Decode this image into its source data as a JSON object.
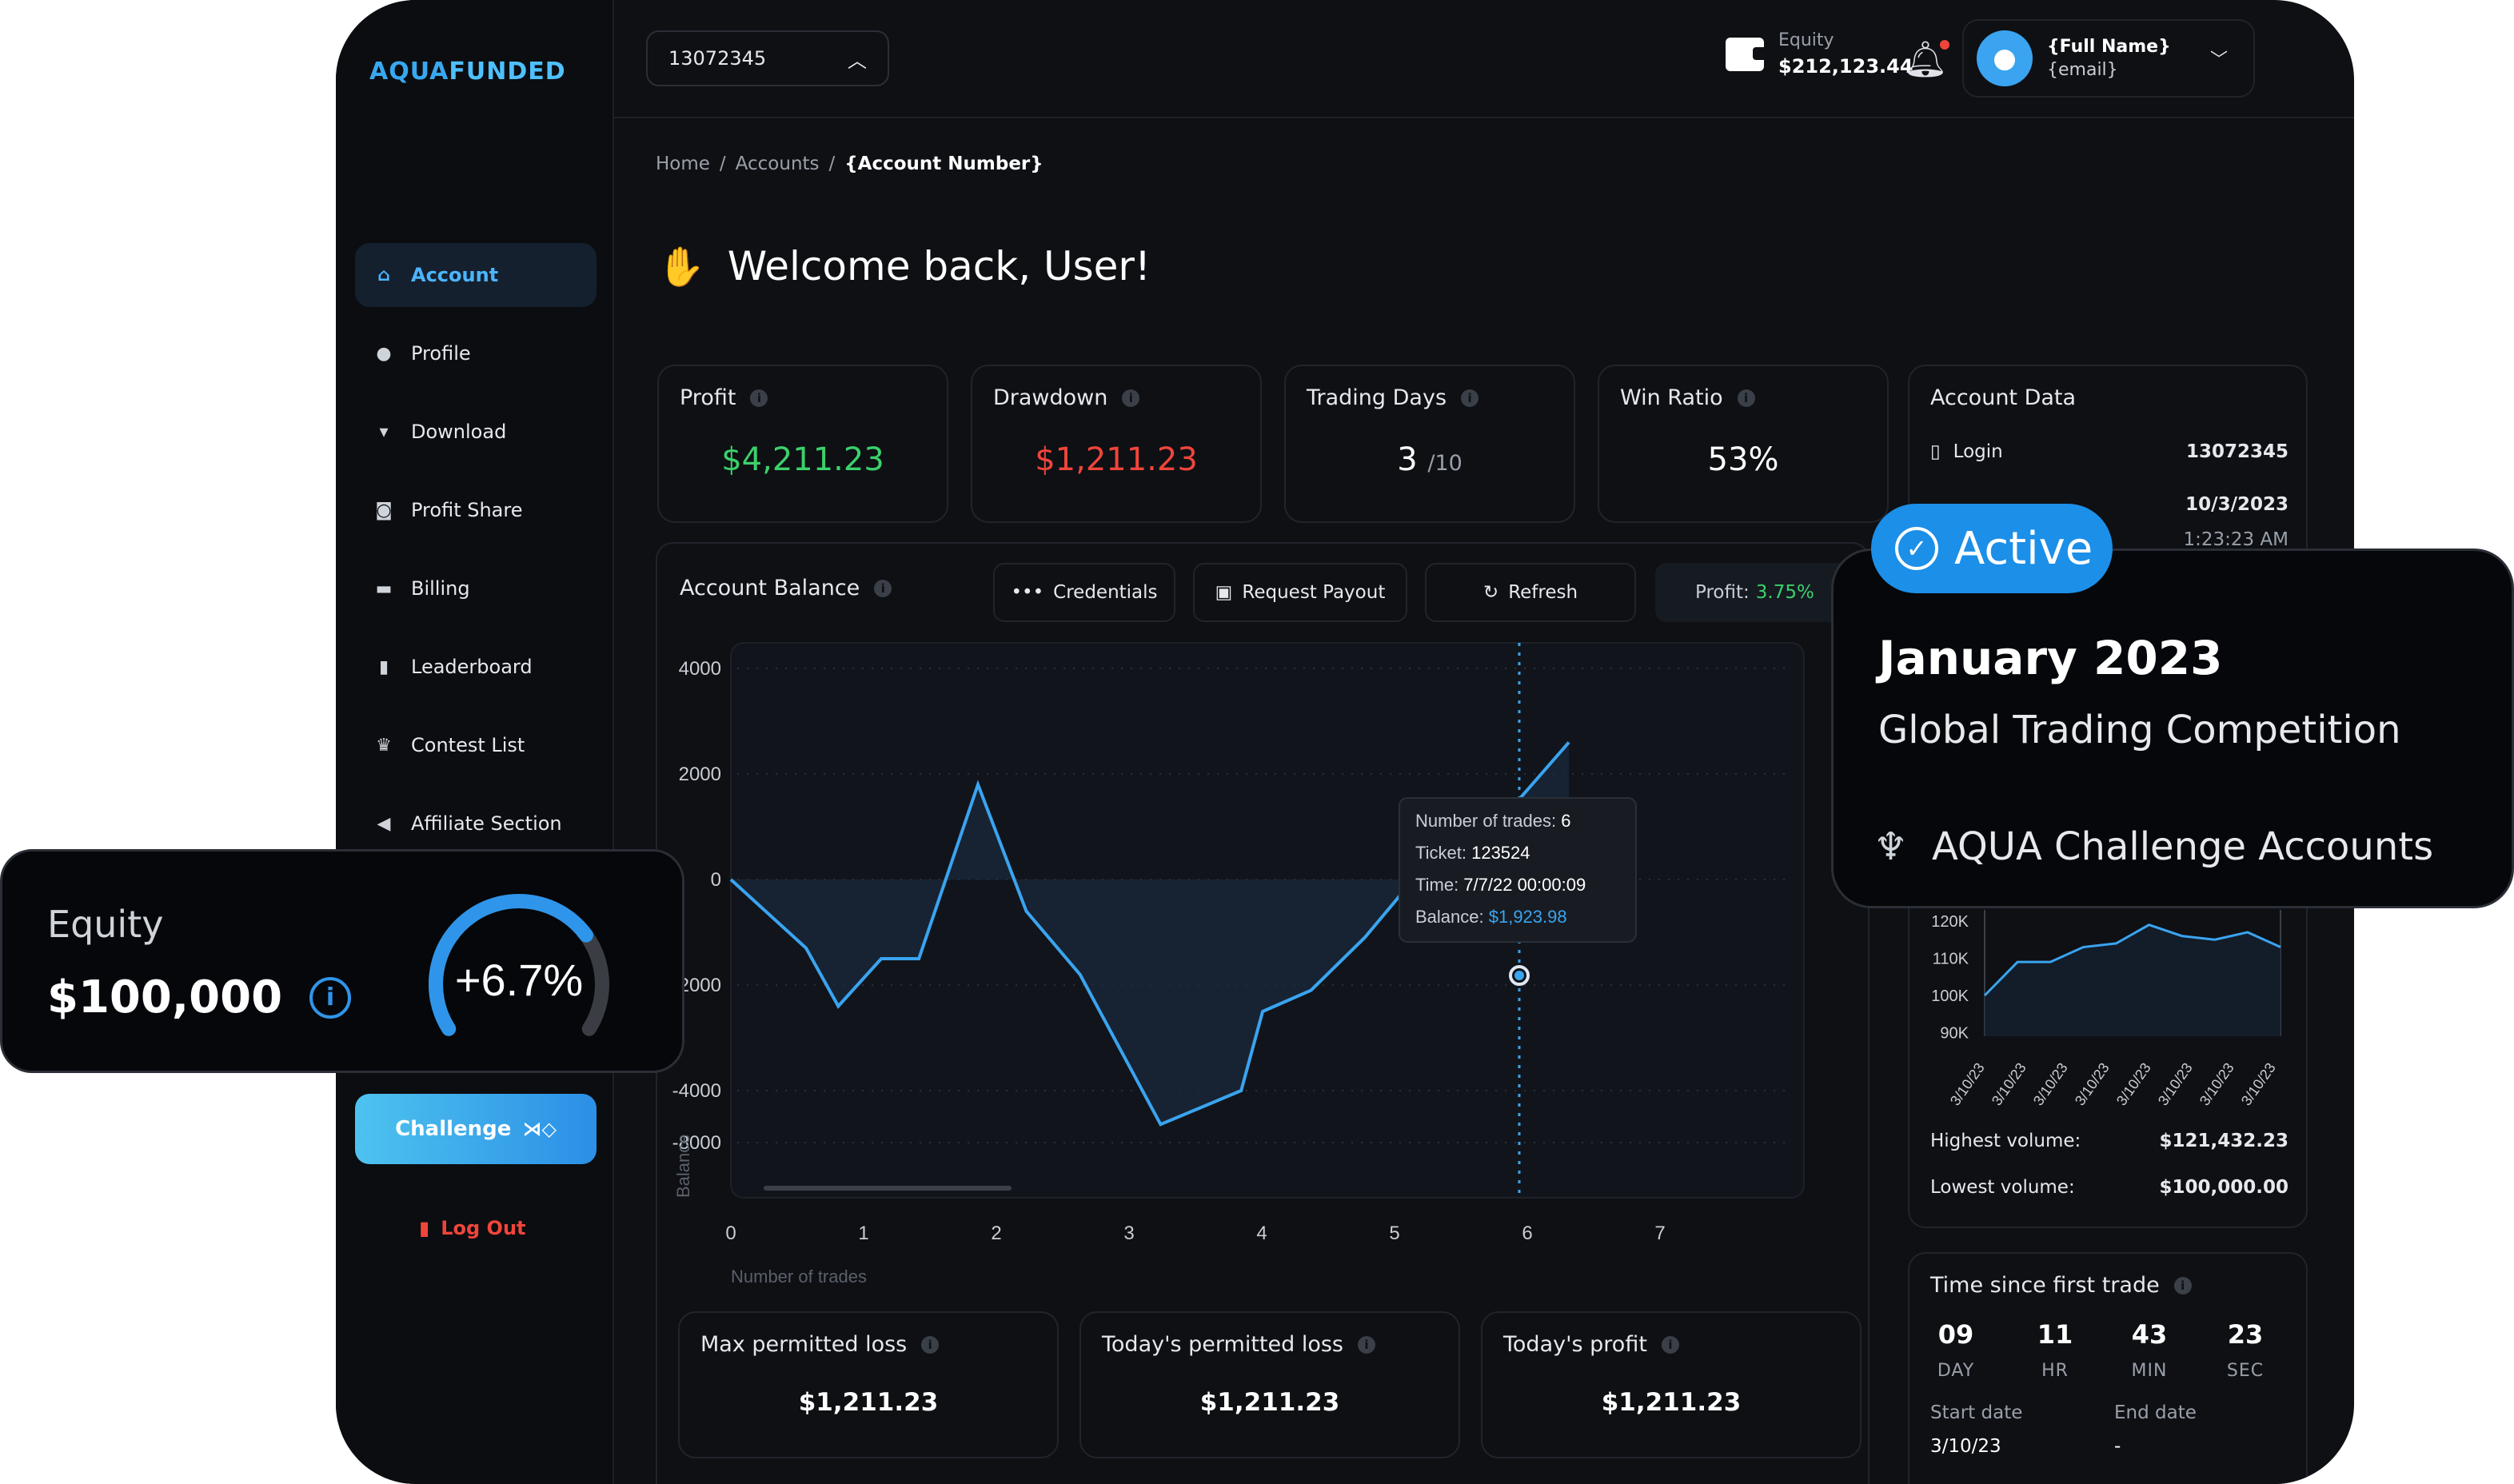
{
  "logo": {
    "part1": "AQUA",
    "part2": "FUNDED"
  },
  "sidebar": {
    "items": [
      {
        "label": "Account",
        "icon": "home-icon",
        "glyph": "⌂"
      },
      {
        "label": "Profile",
        "icon": "user-icon",
        "glyph": "●"
      },
      {
        "label": "Download",
        "icon": "download-icon",
        "glyph": "▾"
      },
      {
        "label": "Profit Share",
        "icon": "wallet-icon",
        "glyph": "◙"
      },
      {
        "label": "Billing",
        "icon": "card-icon",
        "glyph": "▬"
      },
      {
        "label": "Leaderboard",
        "icon": "bar-chart-icon",
        "glyph": "▮"
      },
      {
        "label": "Contest List",
        "icon": "trophy-icon",
        "glyph": "♛"
      },
      {
        "label": "Affiliate Section",
        "icon": "megaphone-icon",
        "glyph": "◀"
      }
    ],
    "challenge_label": "Challenge",
    "logout_label": "Log Out"
  },
  "topbar": {
    "account_number": "13072345",
    "equity_label": "Equity",
    "equity_value": "$212,123.44",
    "user_name": "{Full Name}",
    "user_email": "{email}"
  },
  "breadcrumb": {
    "home": "Home",
    "accounts": "Accounts",
    "current": "{Account Number}"
  },
  "welcome": "Welcome back, User!",
  "stats": {
    "profit_label": "Profit",
    "profit_value": "$4,211.23",
    "drawdown_label": "Drawdown",
    "drawdown_value": "$1,211.23",
    "days_label": "Trading Days",
    "days_value": "3",
    "days_total": "/10",
    "win_label": "Win Ratio",
    "win_value": "53%"
  },
  "balance": {
    "title": "Account Balance",
    "credentials": "Credentials",
    "payout": "Request Payout",
    "refresh": "Refresh",
    "profit_label": "Profit:",
    "profit_value": "3.75%",
    "tooltip": {
      "trades_label": "Number of trades:",
      "trades": "6",
      "ticket_label": "Ticket:",
      "ticket": "123524",
      "time_label": "Time:",
      "time": "7/7/22",
      "time_clock": "00:00:09",
      "balance_label": "Balance:",
      "balance": "$1,923.98"
    }
  },
  "chart_data": {
    "type": "line",
    "xlabel": "Number of trades",
    "ylabel": "Balance",
    "ylim": [
      -8000,
      4000
    ],
    "yticks": [
      "4000",
      "2000",
      "0",
      "-2000",
      "-4000",
      "-8000"
    ],
    "xticks": [
      "0",
      "1",
      "2",
      "3",
      "4",
      "5",
      "6",
      "7"
    ],
    "series": [
      {
        "x": [
          0,
          0.7,
          1.0,
          1.4,
          1.75,
          2.3,
          2.75,
          3.25,
          4.0,
          4.75,
          4.95,
          5.4,
          5.9,
          6.6,
          7.2,
          7.8
        ],
        "y": [
          0,
          -1300,
          -2400,
          -1500,
          -1500,
          1800,
          -600,
          -1800,
          -5300,
          -4000,
          -2500,
          -2100,
          -1100,
          600,
          1200,
          2600
        ]
      }
    ],
    "color": "#3aa4f0"
  },
  "bottom": {
    "max_loss_label": "Max permitted loss",
    "max_loss_value": "$1,211.23",
    "today_loss_label": "Today's permitted loss",
    "today_loss_value": "$1,211.23",
    "today_profit_label": "Today's profit",
    "today_profit_value": "$1,211.23"
  },
  "account_data": {
    "title": "Account Data",
    "login_label": "Login",
    "login_value": "13072345",
    "date_value": "10/3/2023",
    "time_value": "1:23:23 AM"
  },
  "volume": {
    "yticks": [
      "120K",
      "110K",
      "100K",
      "90K"
    ],
    "xticks": [
      "3/10/23",
      "3/10/23",
      "3/10/23",
      "3/10/23",
      "3/10/23",
      "3/10/23",
      "3/10/23",
      "3/10/23"
    ],
    "values": [
      100,
      109,
      109,
      113,
      114,
      119,
      116,
      115,
      117,
      113
    ],
    "highest_label": "Highest volume:",
    "highest_value": "$121,432.23",
    "lowest_label": "Lowest volume:",
    "lowest_value": "$100,000.00"
  },
  "timer": {
    "title": "Time since first trade",
    "day": "09",
    "day_u": "DAY",
    "hr": "11",
    "hr_u": "HR",
    "min": "43",
    "min_u": "MIN",
    "sec": "23",
    "sec_u": "SEC",
    "start_label": "Start date",
    "start_value": "3/10/23",
    "end_label": "End date",
    "end_value": "-"
  },
  "equity_widget": {
    "label": "Equity",
    "value": "$100,000",
    "change": "+6.7%",
    "change_fraction": 0.72
  },
  "active_widget": {
    "status": "Active",
    "title": "January 2023",
    "subtitle": "Global Trading Competition",
    "footer": "AQUA Challenge Accounts"
  }
}
